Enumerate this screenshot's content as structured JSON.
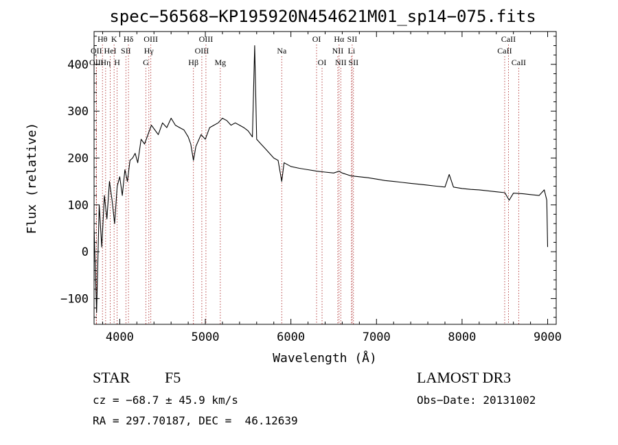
{
  "chart_data": {
    "type": "line",
    "title": "spec−56568−KP195920N454621M01_sp14−075.fits",
    "xlabel": "Wavelength (Å)",
    "ylabel": "Flux (relative)",
    "xlim": [
      3700,
      9100
    ],
    "ylim": [
      -155,
      470
    ],
    "xticks": [
      4000,
      5000,
      6000,
      7000,
      8000,
      9000
    ],
    "xtick_labels": [
      "4000",
      "5000",
      "6000",
      "7000",
      "8000",
      "9000"
    ],
    "yticks": [
      -100,
      0,
      100,
      200,
      300,
      400
    ],
    "ytick_labels": [
      "−100",
      "0",
      "100",
      "200",
      "300",
      "400"
    ],
    "grid": false,
    "series": [
      {
        "name": "spectrum",
        "x": [
          3700,
          3730,
          3760,
          3790,
          3820,
          3850,
          3880,
          3910,
          3940,
          3970,
          4000,
          4030,
          4060,
          4090,
          4120,
          4150,
          4180,
          4210,
          4250,
          4290,
          4330,
          4370,
          4410,
          4450,
          4500,
          4550,
          4600,
          4650,
          4700,
          4750,
          4800,
          4830,
          4861,
          4890,
          4950,
          5000,
          5050,
          5100,
          5150,
          5200,
          5250,
          5300,
          5350,
          5400,
          5450,
          5500,
          5550,
          5577,
          5600,
          5650,
          5700,
          5750,
          5800,
          5850,
          5893,
          5920,
          6000,
          6100,
          6200,
          6300,
          6400,
          6500,
          6563,
          6600,
          6700,
          6800,
          6900,
          7000,
          7100,
          7200,
          7300,
          7400,
          7500,
          7600,
          7700,
          7800,
          7850,
          7900,
          8000,
          8100,
          8200,
          8300,
          8400,
          8500,
          8550,
          8600,
          8700,
          8800,
          8900,
          8960,
          8990,
          9000
        ],
        "y": [
          50,
          -130,
          100,
          10,
          120,
          70,
          150,
          110,
          60,
          140,
          160,
          120,
          175,
          150,
          195,
          200,
          210,
          190,
          240,
          230,
          250,
          270,
          260,
          250,
          275,
          265,
          285,
          270,
          265,
          260,
          245,
          230,
          195,
          225,
          250,
          240,
          265,
          270,
          275,
          285,
          280,
          270,
          275,
          270,
          265,
          258,
          245,
          440,
          240,
          230,
          220,
          210,
          200,
          195,
          150,
          190,
          182,
          178,
          175,
          172,
          170,
          168,
          172,
          168,
          162,
          160,
          158,
          155,
          152,
          150,
          148,
          146,
          144,
          142,
          140,
          138,
          165,
          138,
          135,
          133,
          132,
          130,
          128,
          126,
          110,
          125,
          124,
          122,
          120,
          132,
          110,
          10
        ]
      }
    ],
    "line_markers": [
      {
        "label": "Hθ",
        "wavelength": 3798,
        "row": 1
      },
      {
        "label": "K",
        "wavelength": 3934,
        "row": 1
      },
      {
        "label": "Hδ",
        "wavelength": 4102,
        "row": 1
      },
      {
        "label": "OIII",
        "wavelength": 4363,
        "row": 1
      },
      {
        "label": "OIII",
        "wavelength": 5007,
        "row": 1
      },
      {
        "label": "OI",
        "wavelength": 6300,
        "row": 1
      },
      {
        "label": "Hα",
        "wavelength": 6563,
        "row": 1
      },
      {
        "label": "SII",
        "wavelength": 6716,
        "row": 1
      },
      {
        "label": "CaII",
        "wavelength": 8542,
        "row": 1
      },
      {
        "label": "OII",
        "wavelength": 3727,
        "row": 2
      },
      {
        "label": "HeI",
        "wavelength": 3889,
        "row": 2
      },
      {
        "label": "SII",
        "wavelength": 4072,
        "row": 2
      },
      {
        "label": "Hγ",
        "wavelength": 4340,
        "row": 2
      },
      {
        "label": "OIII",
        "wavelength": 4959,
        "row": 2
      },
      {
        "label": "Na",
        "wavelength": 5893,
        "row": 2
      },
      {
        "label": "NII",
        "wavelength": 6548,
        "row": 2
      },
      {
        "label": "Li",
        "wavelength": 6708,
        "row": 2
      },
      {
        "label": "CaII",
        "wavelength": 8498,
        "row": 2
      },
      {
        "label": "OIII",
        "wavelength": 3727,
        "row": 3
      },
      {
        "label": "Hη",
        "wavelength": 3835,
        "row": 3
      },
      {
        "label": "H",
        "wavelength": 3969,
        "row": 3
      },
      {
        "label": "G",
        "wavelength": 4305,
        "row": 3
      },
      {
        "label": "Hβ",
        "wavelength": 4861,
        "row": 3
      },
      {
        "label": "Mg",
        "wavelength": 5175,
        "row": 3
      },
      {
        "label": "OI",
        "wavelength": 6364,
        "row": 3
      },
      {
        "label": "NII",
        "wavelength": 6583,
        "row": 3
      },
      {
        "label": "SII",
        "wavelength": 6731,
        "row": 3
      },
      {
        "label": "CaII",
        "wavelength": 8662,
        "row": 3
      }
    ]
  },
  "info": {
    "object_class": "STAR",
    "subclass": "F5",
    "survey": "LAMOST DR3",
    "cz": "cz = −68.7 ± 45.9 km/s",
    "obs_date": "Obs−Date: 20131002",
    "coords": "RA = 297.70187, DEC =  46.12639"
  },
  "colors": {
    "spectrum": "#000000",
    "marker": "#b03030",
    "axes": "#000000"
  }
}
